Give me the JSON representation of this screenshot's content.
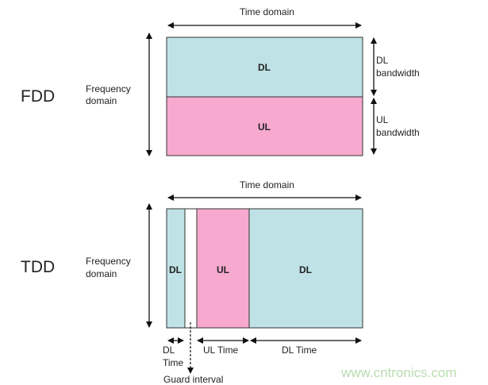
{
  "colors": {
    "dl": "#bfe2e6",
    "ul": "#f7a9cf",
    "watermark": "#b9dcb0"
  },
  "fdd": {
    "title": "FDD",
    "freq_label": [
      "Frequency",
      "domain"
    ],
    "time_label": "Time domain",
    "dl_label": "DL",
    "ul_label": "UL",
    "dl_bw": [
      "DL",
      "bandwidth"
    ],
    "ul_bw": [
      "UL",
      "bandwidth"
    ]
  },
  "tdd": {
    "title": "TDD",
    "freq_label": [
      "Frequency",
      "domain"
    ],
    "time_label": "Time domain",
    "dl1_label": "DL",
    "ul_label": "UL",
    "dl2_label": "DL",
    "dl_time": [
      "DL",
      "Time"
    ],
    "ul_time": "UL Time",
    "dl_time2": "DL Time",
    "guard": "Guard interval"
  },
  "watermark": "www.cntronics.com"
}
